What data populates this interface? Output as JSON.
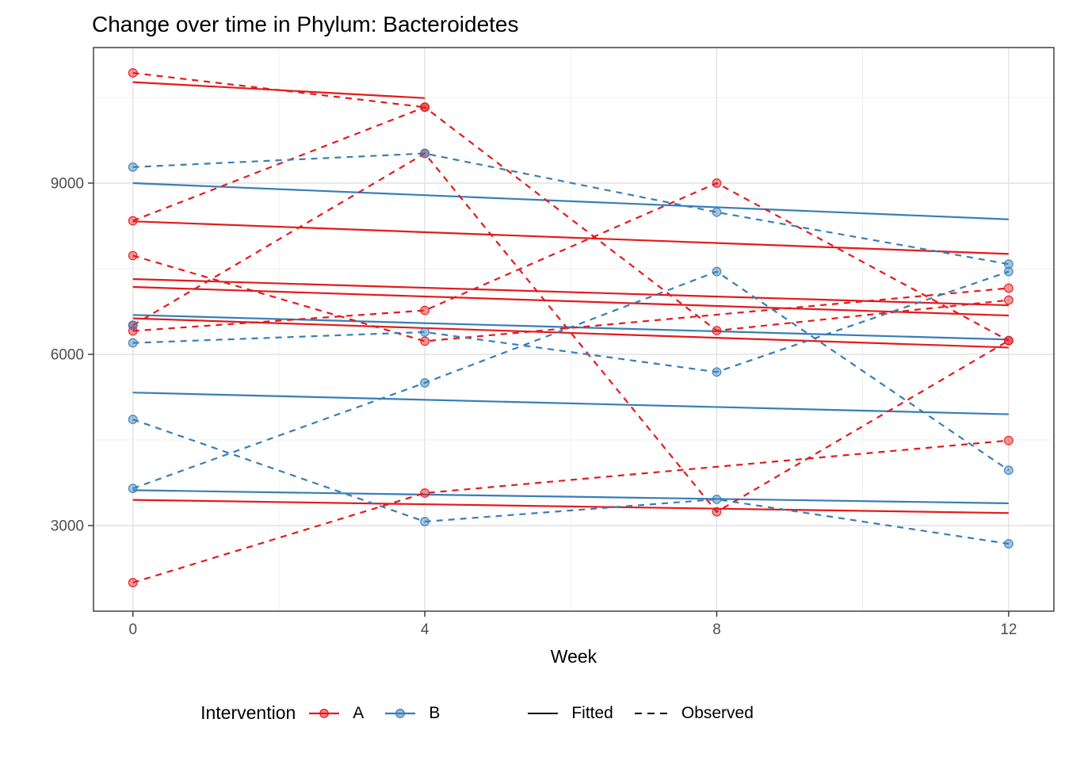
{
  "title": "Change over time in Phylum: Bacteroidetes",
  "xlabel": "Week",
  "legend": {
    "intervention_title": "Intervention",
    "a_label": "A",
    "b_label": "B",
    "fitted_label": "Fitted",
    "observed_label": "Observed"
  },
  "colors": {
    "A": "#E41A1C",
    "B": "#377EB8",
    "legend_key": "#000000",
    "grid_major": "#E2E2E2",
    "grid_minor": "#F2F2F2",
    "panel_border": "#333333",
    "tick_text": "#4D4D4D",
    "background": "#FFFFFF"
  },
  "chart_data": {
    "type": "line",
    "x": [
      0,
      4,
      8,
      12
    ],
    "xtick_labels": [
      "0",
      "4",
      "8",
      "12"
    ],
    "ytick_values": [
      3000,
      6000,
      9000
    ],
    "ytick_labels": [
      "3000",
      "6000",
      "9000"
    ],
    "x_minor": [
      2,
      6,
      10
    ],
    "y_minor": [
      4500,
      7500,
      10500
    ],
    "xlim": [
      -0.54,
      12.62
    ],
    "ylim": [
      1500,
      11375
    ],
    "grid": true,
    "legend_position": "bottom",
    "series": [
      {
        "id": "A1-observed",
        "group": "A",
        "kind": "observed",
        "weeks": [
          0,
          4
        ],
        "values": [
          10930,
          10330
        ]
      },
      {
        "id": "A2-observed",
        "group": "A",
        "kind": "observed",
        "weeks": [
          0,
          4,
          8,
          12
        ],
        "values": [
          8340,
          10330,
          6415,
          6950
        ]
      },
      {
        "id": "A3-observed",
        "group": "A",
        "kind": "observed",
        "weeks": [
          0,
          4,
          12
        ],
        "values": [
          7730,
          6230,
          7160
        ]
      },
      {
        "id": "A4-observed",
        "group": "A",
        "kind": "observed",
        "weeks": [
          0,
          4,
          8,
          12
        ],
        "values": [
          6510,
          9520,
          3240,
          6240
        ]
      },
      {
        "id": "A5-observed",
        "group": "A",
        "kind": "observed",
        "weeks": [
          0,
          4,
          8,
          12
        ],
        "values": [
          6410,
          6770,
          9000,
          6240
        ]
      },
      {
        "id": "A6-observed",
        "group": "A",
        "kind": "observed",
        "weeks": [
          0,
          4,
          12
        ],
        "values": [
          2000,
          3570,
          4490
        ]
      },
      {
        "id": "B1-observed",
        "group": "B",
        "kind": "observed",
        "weeks": [
          0,
          4,
          8,
          12
        ],
        "values": [
          9280,
          9520,
          8490,
          7580
        ]
      },
      {
        "id": "B2-observed",
        "group": "B",
        "kind": "observed",
        "weeks": [
          0,
          4,
          8,
          12
        ],
        "values": [
          6200,
          6390,
          5690,
          7450
        ]
      },
      {
        "id": "B3-observed",
        "group": "B",
        "kind": "observed",
        "weeks": [
          0,
          4,
          8,
          12
        ],
        "values": [
          4860,
          3070,
          3460,
          2680
        ]
      },
      {
        "id": "B4-observed",
        "group": "B",
        "kind": "observed",
        "weeks": [
          0,
          4,
          8,
          12
        ],
        "values": [
          3650,
          5500,
          7450,
          3970
        ]
      },
      {
        "id": "B5-observed",
        "group": "B",
        "kind": "observed",
        "weeks": [
          0
        ],
        "values": [
          6510
        ]
      },
      {
        "id": "A1-fitted",
        "group": "A",
        "kind": "fitted",
        "weeks": [
          0,
          4
        ],
        "values": [
          10770,
          10490
        ]
      },
      {
        "id": "A2-fitted",
        "group": "A",
        "kind": "fitted",
        "weeks": [
          0,
          12
        ],
        "values": [
          8330,
          7760
        ]
      },
      {
        "id": "A3-fitted",
        "group": "A",
        "kind": "fitted",
        "weeks": [
          0,
          12
        ],
        "values": [
          7320,
          6860
        ]
      },
      {
        "id": "A4-fitted",
        "group": "A",
        "kind": "fitted",
        "weeks": [
          0,
          12
        ],
        "values": [
          7180,
          6680
        ]
      },
      {
        "id": "A5-fitted",
        "group": "A",
        "kind": "fitted",
        "weeks": [
          0,
          12
        ],
        "values": [
          6630,
          6120
        ]
      },
      {
        "id": "A6-fitted",
        "group": "A",
        "kind": "fitted",
        "weeks": [
          0,
          12
        ],
        "values": [
          3450,
          3220
        ]
      },
      {
        "id": "B1-fitted",
        "group": "B",
        "kind": "fitted",
        "weeks": [
          0,
          12
        ],
        "values": [
          9000,
          8365
        ]
      },
      {
        "id": "B2-fitted",
        "group": "B",
        "kind": "fitted",
        "weeks": [
          0,
          12
        ],
        "values": [
          6690,
          6260
        ]
      },
      {
        "id": "B3-fitted",
        "group": "B",
        "kind": "fitted",
        "weeks": [
          0,
          12
        ],
        "values": [
          5330,
          4950
        ]
      },
      {
        "id": "B4-fitted",
        "group": "B",
        "kind": "fitted",
        "weeks": [
          0,
          12
        ],
        "values": [
          3620,
          3390
        ]
      }
    ]
  }
}
